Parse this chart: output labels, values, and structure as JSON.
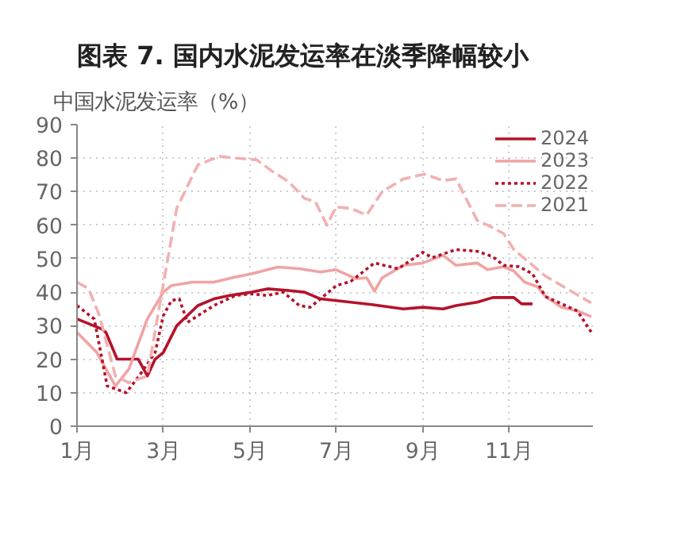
{
  "chart_data": {
    "type": "line",
    "title": "图表 7. 国内水泥发运率在淡季降幅较小",
    "ylabel": "中国水泥发运率（%）",
    "xlim": [
      1,
      12.95
    ],
    "xticks": [
      {
        "value": 1,
        "label": "1月"
      },
      {
        "value": 3,
        "label": "3月"
      },
      {
        "value": 5,
        "label": "5月"
      },
      {
        "value": 7,
        "label": "7月"
      },
      {
        "value": 9,
        "label": "9月"
      },
      {
        "value": 11,
        "label": "11月"
      }
    ],
    "ylim": [
      0,
      90
    ],
    "yticks": [
      0,
      10,
      20,
      30,
      40,
      50,
      60,
      70,
      80,
      90
    ],
    "grid": true,
    "legend": "top right",
    "series": [
      {
        "name": "2024",
        "color": "#b5122b",
        "line_style": "solid",
        "x": [
          1,
          1.58,
          1.67,
          1.93,
          2.32,
          2.42,
          2.63,
          2.81,
          3,
          3.31,
          3.8,
          4.17,
          4.54,
          5.04,
          5.41,
          5.9,
          6.27,
          6.64,
          7.01,
          7.83,
          8.56,
          9.01,
          9.48,
          9.78,
          10.27,
          10.63,
          11.12,
          11.3,
          11.55
        ],
        "values": [
          32,
          29,
          28,
          20,
          20,
          20,
          15,
          20,
          22,
          30,
          36,
          38,
          39,
          40,
          41,
          40.5,
          40,
          38,
          37.5,
          36.3,
          35,
          35.5,
          35,
          36,
          37,
          38.4,
          38.4,
          36.5,
          36.5
        ]
      },
      {
        "name": "2023",
        "color": "#f0a3a3",
        "line_style": "solid",
        "x": [
          1,
          1.46,
          1.89,
          2.2,
          2.63,
          3,
          3.19,
          3.68,
          4.17,
          4.67,
          5.04,
          5.65,
          6.15,
          6.64,
          7,
          7.46,
          7.71,
          7.89,
          8.07,
          8.56,
          9.01,
          9.48,
          9.78,
          10.27,
          10.51,
          10.88,
          11.12,
          11.37,
          11.67,
          11.85,
          12.22,
          12.59,
          12.91
        ],
        "values": [
          28,
          22,
          12,
          17,
          32,
          40,
          42,
          43,
          43,
          44.5,
          45.5,
          47.5,
          47,
          46,
          46.7,
          44,
          44.3,
          40.3,
          44.3,
          48,
          48.7,
          51,
          48,
          48.7,
          46.7,
          47.6,
          46.3,
          43,
          41.6,
          38.7,
          35.5,
          34.4,
          32.7
        ]
      },
      {
        "name": "2022",
        "color": "#b5122b",
        "line_style": "dotted",
        "x": [
          1,
          1.4,
          1.7,
          2.14,
          2.44,
          2.81,
          3,
          3.19,
          3.37,
          3.56,
          4.17,
          4.67,
          5.04,
          5.41,
          5.78,
          6.15,
          6.4,
          6.64,
          7.01,
          7.34,
          7.89,
          8.44,
          9.01,
          9.23,
          9.78,
          10.27,
          10.63,
          10.88,
          11.24,
          11.55,
          11.85,
          12.59,
          12.91
        ],
        "values": [
          36,
          32,
          12,
          10,
          15,
          22,
          33,
          37.5,
          38,
          31,
          36,
          39,
          39.5,
          39,
          40,
          36,
          35.5,
          38,
          42,
          43.2,
          48.7,
          47,
          51.9,
          50.3,
          52.7,
          52.2,
          50.6,
          48,
          47.6,
          45.5,
          38.7,
          34.4,
          28.1
        ]
      },
      {
        "name": "2021",
        "color": "#f2b0b0",
        "line_style": "dashed",
        "x": [
          1,
          1.27,
          1.52,
          1.89,
          2.2,
          2.63,
          2.94,
          3.31,
          3.8,
          4.3,
          4.67,
          5.16,
          5.53,
          5.9,
          6.27,
          6.52,
          6.79,
          7,
          7.34,
          7.71,
          8.07,
          8.56,
          9.05,
          9.48,
          9.78,
          10.27,
          10.51,
          10.88,
          11.12,
          11.85,
          12.59,
          12.91
        ],
        "values": [
          43,
          41,
          33,
          15,
          13,
          15,
          38,
          65,
          78,
          80.5,
          80,
          79.5,
          76,
          73,
          68,
          67,
          60,
          65.4,
          65,
          63,
          70,
          73.8,
          75.2,
          73.3,
          73.8,
          61.4,
          60,
          57.5,
          52.7,
          44.8,
          39.2,
          36.8
        ]
      }
    ]
  }
}
